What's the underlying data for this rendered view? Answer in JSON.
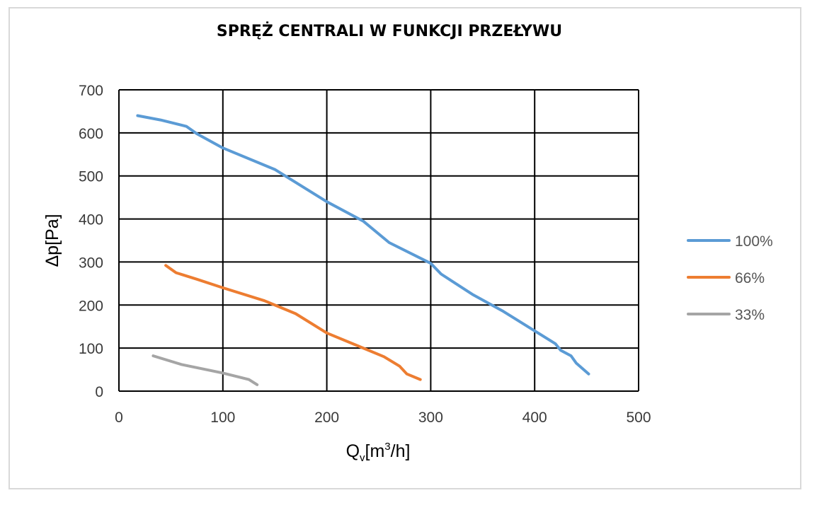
{
  "chart_data": {
    "type": "line",
    "title": "SPRĘŻ CENTRALI W FUNKCJI PRZEŁYWU",
    "xlabel": {
      "main": "Q",
      "sub": "v",
      "rest_a": "[m",
      "sup": "3",
      "rest_b": "/h]"
    },
    "ylabel": "Δp[Pa]",
    "xlim": [
      0,
      500
    ],
    "ylim": [
      0,
      700
    ],
    "xticks": [
      0,
      100,
      200,
      300,
      400,
      500
    ],
    "yticks": [
      0,
      100,
      200,
      300,
      400,
      500,
      600,
      700
    ],
    "grid": true,
    "legend_position": "right",
    "series": [
      {
        "name": "100%",
        "color": "#5b9bd5",
        "points": [
          [
            18,
            640
          ],
          [
            40,
            630
          ],
          [
            65,
            615
          ],
          [
            75,
            598
          ],
          [
            100,
            565
          ],
          [
            150,
            515
          ],
          [
            200,
            440
          ],
          [
            235,
            395
          ],
          [
            260,
            345
          ],
          [
            300,
            297
          ],
          [
            310,
            272
          ],
          [
            340,
            225
          ],
          [
            370,
            185
          ],
          [
            400,
            140
          ],
          [
            420,
            110
          ],
          [
            425,
            95
          ],
          [
            435,
            82
          ],
          [
            440,
            65
          ],
          [
            452,
            40
          ]
        ]
      },
      {
        "name": "66%",
        "color": "#ed7d31",
        "points": [
          [
            45,
            292
          ],
          [
            55,
            275
          ],
          [
            75,
            260
          ],
          [
            100,
            240
          ],
          [
            140,
            210
          ],
          [
            170,
            180
          ],
          [
            200,
            135
          ],
          [
            235,
            100
          ],
          [
            255,
            80
          ],
          [
            270,
            58
          ],
          [
            277,
            40
          ],
          [
            290,
            27
          ]
        ]
      },
      {
        "name": "33%",
        "color": "#a5a5a5",
        "points": [
          [
            33,
            82
          ],
          [
            60,
            62
          ],
          [
            100,
            42
          ],
          [
            125,
            27
          ],
          [
            133,
            15
          ]
        ]
      }
    ]
  }
}
